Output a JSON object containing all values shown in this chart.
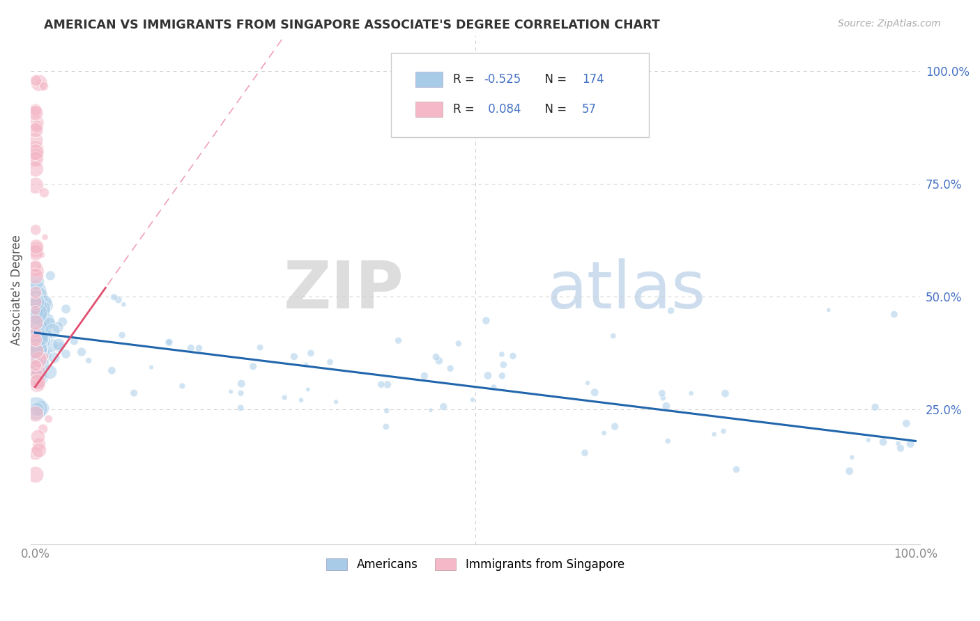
{
  "title": "AMERICAN VS IMMIGRANTS FROM SINGAPORE ASSOCIATE'S DEGREE CORRELATION CHART",
  "source": "Source: ZipAtlas.com",
  "ylabel": "Associate's Degree",
  "background_color": "#ffffff",
  "blue_color": "#a8cce8",
  "pink_color": "#f4b8c8",
  "blue_line_color": "#2166ac",
  "pink_line_solid_color": "#e05070",
  "pink_line_dashed_color": "#f0a0b8",
  "R_blue": -0.525,
  "N_blue": 174,
  "R_pink": 0.084,
  "N_pink": 57,
  "y_tick_positions_right": [
    1.0,
    0.75,
    0.5,
    0.25
  ],
  "y_tick_labels_right": [
    "100.0%",
    "75.0%",
    "50.0%",
    "25.0%"
  ],
  "grid_color": "#cccccc",
  "watermark_zip": "ZIP",
  "watermark_atlas": "atlas",
  "legend_blue_label": "Americans",
  "legend_pink_label": "Immigrants from Singapore",
  "legend_R_color": "#4472c4",
  "legend_N_color": "#4472c4"
}
